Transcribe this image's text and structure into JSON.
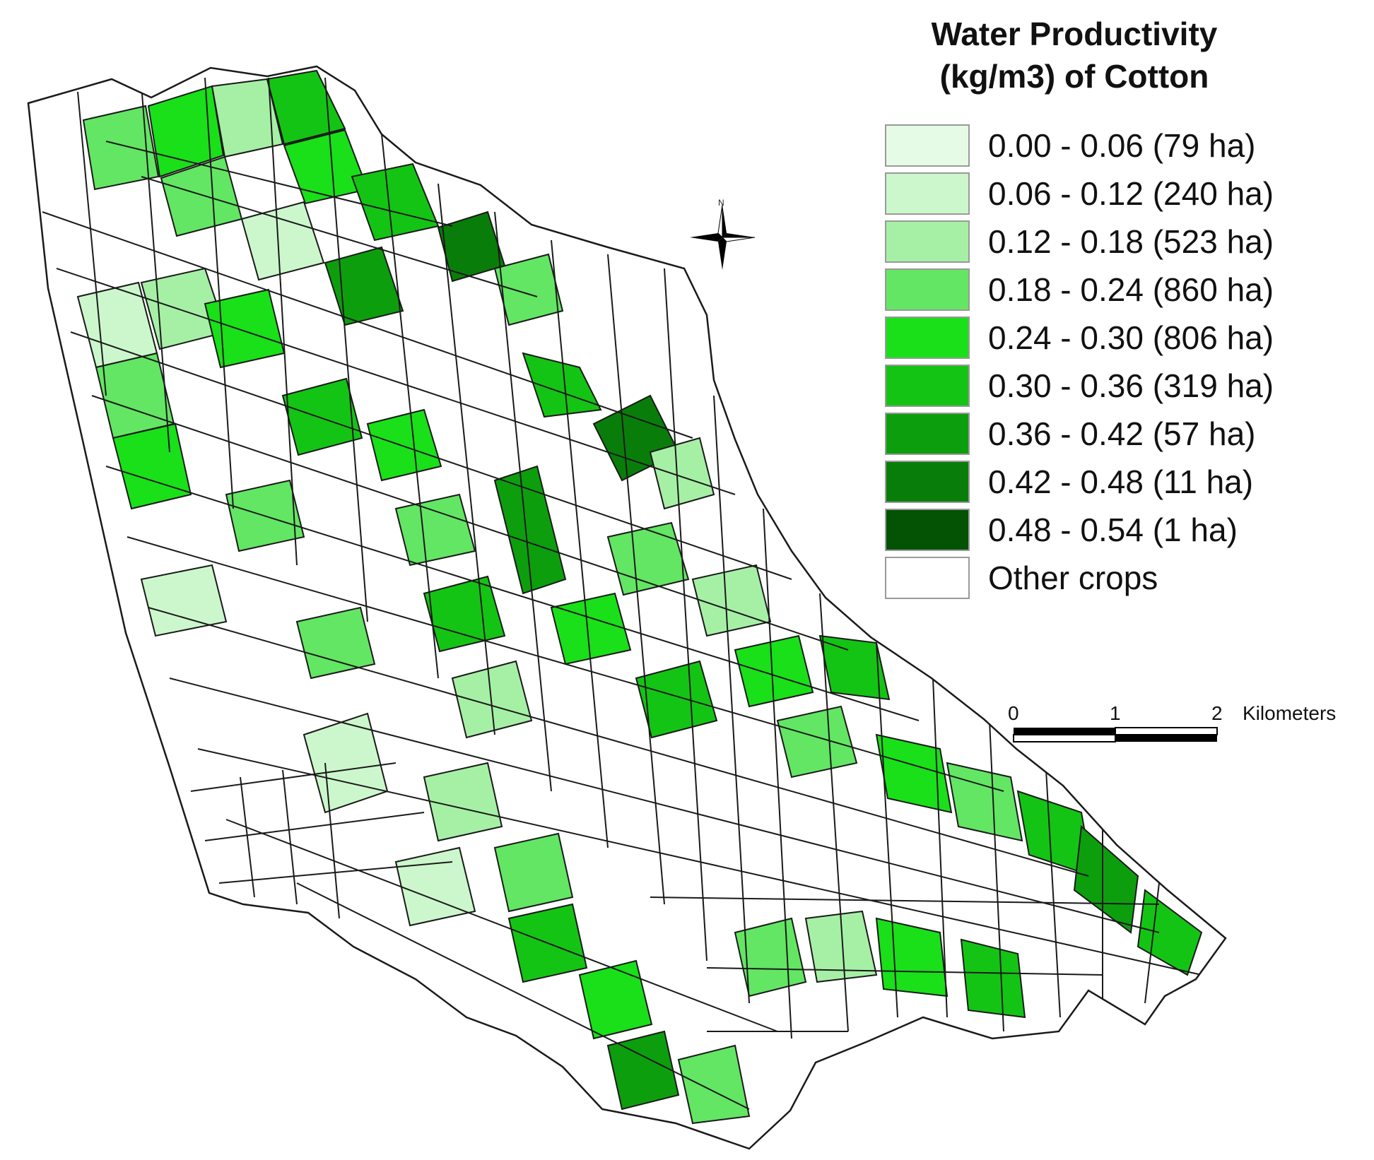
{
  "legend": {
    "title_line1": "Water Productivity",
    "title_line2": "(kg/m3) of Cotton",
    "classes": [
      {
        "label": "0.00 - 0.06 (79 ha)",
        "range": [
          0.0,
          0.06
        ],
        "area_ha": 79,
        "color": "#e6fbe6"
      },
      {
        "label": "0.06 - 0.12 (240 ha)",
        "range": [
          0.06,
          0.12
        ],
        "area_ha": 240,
        "color": "#ccf7cc"
      },
      {
        "label": "0.12 - 0.18 (523 ha)",
        "range": [
          0.12,
          0.18
        ],
        "area_ha": 523,
        "color": "#a6f0a6"
      },
      {
        "label": "0.18 - 0.24 (860 ha)",
        "range": [
          0.18,
          0.24
        ],
        "area_ha": 860,
        "color": "#63e663"
      },
      {
        "label": "0.24 - 0.30 (806 ha)",
        "range": [
          0.24,
          0.3
        ],
        "area_ha": 806,
        "color": "#19e019"
      },
      {
        "label": "0.30 - 0.36 (319 ha)",
        "range": [
          0.3,
          0.36
        ],
        "area_ha": 319,
        "color": "#14c414"
      },
      {
        "label": "0.36 - 0.42 (57 ha)",
        "range": [
          0.36,
          0.42
        ],
        "area_ha": 57,
        "color": "#0d9e0d"
      },
      {
        "label": "0.42 - 0.48 (11 ha)",
        "range": [
          0.42,
          0.48
        ],
        "area_ha": 11,
        "color": "#097d09"
      },
      {
        "label": "0.48 - 0.54 (1 ha)",
        "range": [
          0.48,
          0.54
        ],
        "area_ha": 1,
        "color": "#045204"
      },
      {
        "label": "Other crops",
        "color": "#ffffff"
      }
    ]
  },
  "scale_bar": {
    "ticks": [
      "0",
      "1",
      "2"
    ],
    "unit": "Kilometers"
  },
  "north_arrow": {
    "label": "N",
    "icon": "north-arrow-icon"
  },
  "map": {
    "field_outline_color": "#1a1a1a",
    "background_color": "#ffffff"
  }
}
